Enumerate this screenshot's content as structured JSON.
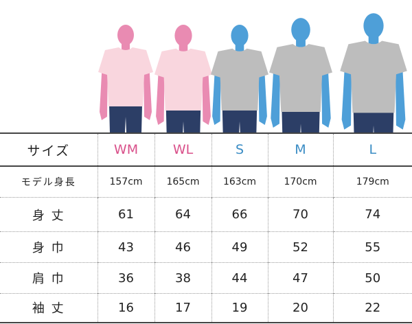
{
  "table": {
    "header": {
      "label": "サイズ",
      "sizes": [
        "WM",
        "WL",
        "S",
        "M",
        "L"
      ],
      "colors": [
        "#d9508a",
        "#d9508a",
        "#3a8cc4",
        "#3a8cc4",
        "#3a8cc4"
      ]
    },
    "height_row": {
      "label": "モデル身長",
      "values": [
        "157cm",
        "165cm",
        "163cm",
        "170cm",
        "179cm"
      ]
    },
    "rows": [
      {
        "label": "身 丈",
        "values": [
          61,
          64,
          66,
          70,
          74
        ]
      },
      {
        "label": "身 巾",
        "values": [
          43,
          46,
          49,
          52,
          55
        ]
      },
      {
        "label": "肩 巾",
        "values": [
          36,
          38,
          44,
          47,
          50
        ]
      },
      {
        "label": "袖 丈",
        "values": [
          16,
          17,
          19,
          20,
          22
        ]
      }
    ]
  }
}
